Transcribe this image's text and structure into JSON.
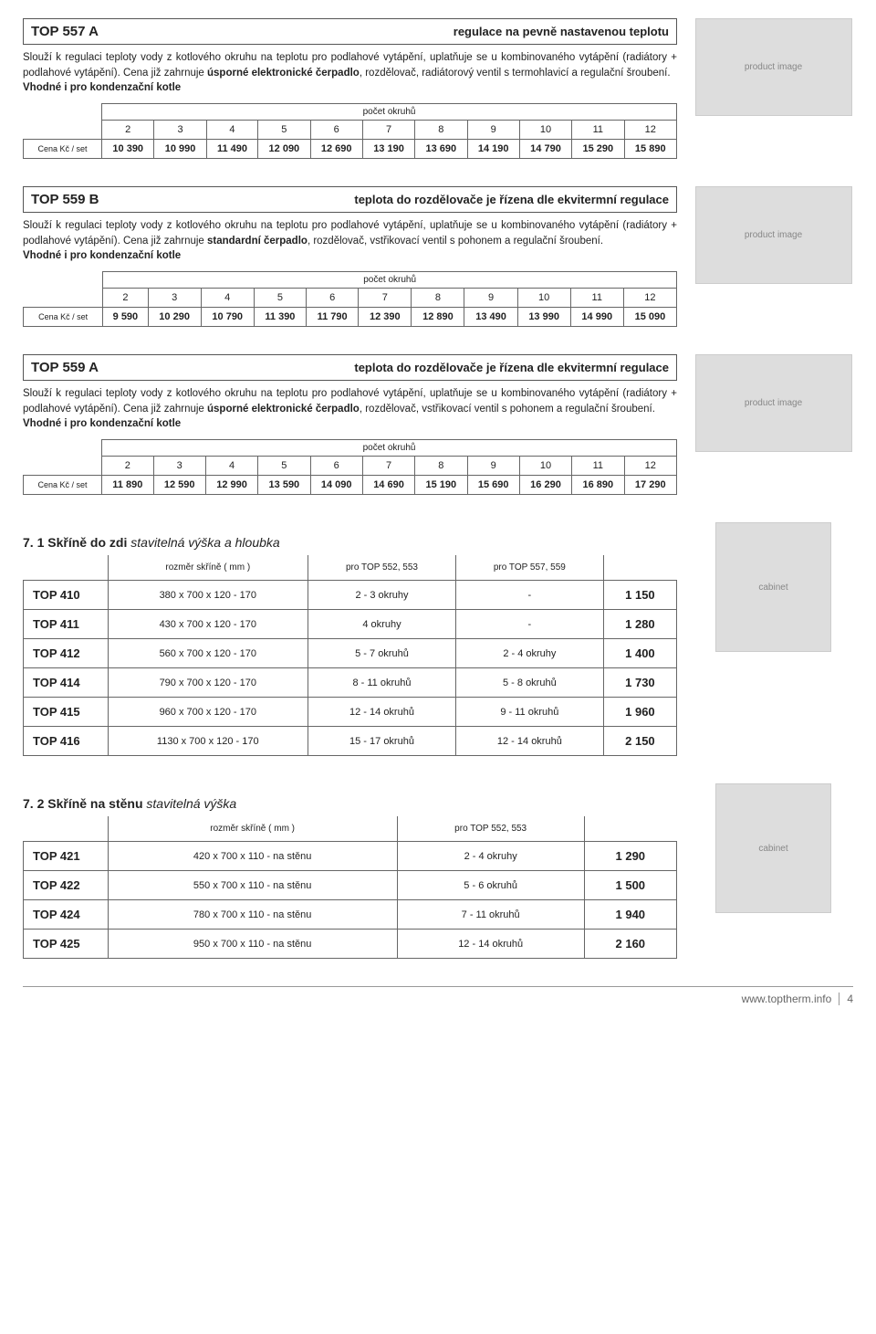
{
  "sections": [
    {
      "code": "TOP 557 A",
      "sub": "regulace na pevně nastavenou teplotu",
      "desc_prefix": "Slouží k regulaci teploty vody z kotlového okruhu na teplotu pro podlahové vytápění, uplatňuje se u kombinovaného vytápění (radiátory + podlahové vytápění). Cena již zahrnuje ",
      "desc_bold": "úsporné elektronické čerpadlo",
      "desc_suffix": ", rozdělovač, radiátorový ventil s termohlavicí a regulační šroubení.",
      "note": "Vhodné i pro kondenzační kotle",
      "caption": "počet okruhů",
      "rowlabel": "Cena Kč / set",
      "cols": [
        "2",
        "3",
        "4",
        "5",
        "6",
        "7",
        "8",
        "9",
        "10",
        "11",
        "12"
      ],
      "prices": [
        "10 390",
        "10 990",
        "11 490",
        "12 090",
        "12 690",
        "13 190",
        "13 690",
        "14 190",
        "14 790",
        "15 290",
        "15 890"
      ]
    },
    {
      "code": "TOP 559 B",
      "sub": "teplota do rozdělovače je řízena dle ekvitermní regulace",
      "desc_prefix": "Slouží k regulaci teploty vody z kotlového okruhu na teplotu pro podlahové vytápění, uplatňuje se u kombinovaného vytápění (radiátory + podlahové vytápění). Cena již zahrnuje ",
      "desc_bold": "standardní čerpadlo",
      "desc_suffix": ", rozdělovač, vstřikovací ventil s pohonem a regulační šroubení.",
      "note": "Vhodné i pro kondenzační kotle",
      "caption": "počet okruhů",
      "rowlabel": "Cena Kč / set",
      "cols": [
        "2",
        "3",
        "4",
        "5",
        "6",
        "7",
        "8",
        "9",
        "10",
        "11",
        "12"
      ],
      "prices": [
        "9 590",
        "10 290",
        "10 790",
        "11 390",
        "11 790",
        "12 390",
        "12 890",
        "13 490",
        "13 990",
        "14 990",
        "15 090"
      ]
    },
    {
      "code": "TOP 559 A",
      "sub": "teplota do rozdělovače je řízena dle ekvitermní regulace",
      "desc_prefix": "Slouží k regulaci teploty vody z kotlového okruhu na teplotu pro podlahové vytápění, uplatňuje se u kombinovaného vytápění (radiátory + podlahové vytápění). Cena již zahrnuje ",
      "desc_bold": "úsporné elektronické čerpadlo",
      "desc_suffix": ", rozdělovač, vstřikovací ventil s pohonem a regulační šroubení.",
      "note": "Vhodné i pro kondenzační kotle",
      "caption": "počet okruhů",
      "rowlabel": "Cena Kč / set",
      "cols": [
        "2",
        "3",
        "4",
        "5",
        "6",
        "7",
        "8",
        "9",
        "10",
        "11",
        "12"
      ],
      "prices": [
        "11 890",
        "12 590",
        "12 990",
        "13 590",
        "14 090",
        "14 690",
        "15 190",
        "15 690",
        "16 290",
        "16 890",
        "17 290"
      ]
    }
  ],
  "cab1": {
    "title_bold": "7. 1 Skříně do zdi",
    "title_thin": " stavitelná výška a hloubka",
    "headers": [
      "",
      "rozměr skříně ( mm )",
      "pro TOP 552, 553",
      "pro TOP 557,  559",
      ""
    ],
    "rows": [
      [
        "TOP 410",
        "380 x 700 x 120 - 170",
        "2 - 3 okruhy",
        "-",
        "1 150"
      ],
      [
        "TOP 411",
        "430 x 700 x 120 - 170",
        "4 okruhy",
        "-",
        "1 280"
      ],
      [
        "TOP 412",
        "560 x 700 x 120 - 170",
        "5 - 7 okruhů",
        "2 - 4 okruhy",
        "1 400"
      ],
      [
        "TOP 414",
        "790 x 700 x 120 - 170",
        "8 - 11 okruhů",
        "5 - 8 okruhů",
        "1 730"
      ],
      [
        "TOP 415",
        "960 x 700 x 120 - 170",
        "12 - 14 okruhů",
        "9 - 11 okruhů",
        "1 960"
      ],
      [
        "TOP 416",
        "1130 x 700 x 120 - 170",
        "15 - 17 okruhů",
        "12 - 14 okruhů",
        "2 150"
      ]
    ]
  },
  "cab2": {
    "title_bold": "7. 2 Skříně na stěnu",
    "title_thin": " stavitelná výška",
    "headers": [
      "",
      "rozměr skříně ( mm )",
      "pro TOP 552, 553",
      ""
    ],
    "rows": [
      [
        "TOP 421",
        "420 x 700 x 110 - na stěnu",
        "2 - 4 okruhy",
        "1 290"
      ],
      [
        "TOP 422",
        "550 x 700 x 110 - na stěnu",
        "5 - 6 okruhů",
        "1 500"
      ],
      [
        "TOP 424",
        "780 x 700 x 110 - na stěnu",
        "7 - 11 okruhů",
        "1 940"
      ],
      [
        "TOP 425",
        "950 x 700 x 110 - na stěnu",
        "12 - 14 okruhů",
        "2 160"
      ]
    ]
  },
  "footer": {
    "url": "www.toptherm.info",
    "page": "4"
  },
  "product_img_label": "product image",
  "cabinet_img_label": "cabinet"
}
